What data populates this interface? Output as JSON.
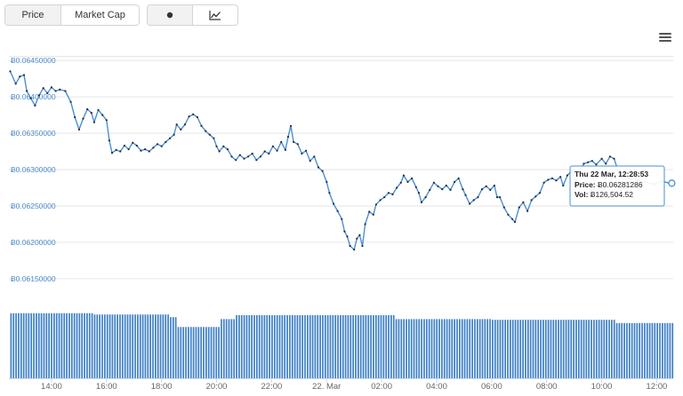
{
  "toolbar": {
    "price_label": "Price",
    "market_cap_label": "Market Cap",
    "dot_icon": "dot-icon",
    "line_chart_icon": "line-chart-icon",
    "menu_icon": "hamburger-menu-icon"
  },
  "colors": {
    "line": "#4a8fd6",
    "bar": "#3c7fc6",
    "grid": "#e6e6e6",
    "ytick": "#4d8ac9"
  },
  "tooltip": {
    "title": "Thu 22 Mar, 12:28:53",
    "price_label": "Price:",
    "price_value": "Ƀ0.06281286",
    "vol_label": "Vol:",
    "vol_value": "Ƀ126,504.52"
  },
  "chart_data": {
    "type": "line",
    "y_ticks": [
      "Ƀ0.06450000",
      "Ƀ0.06400000",
      "Ƀ0.06350000",
      "Ƀ0.06300000",
      "Ƀ0.06250000",
      "Ƀ0.06200000",
      "Ƀ0.06150000"
    ],
    "y_tick_values": [
      0.0645,
      0.064,
      0.0635,
      0.063,
      0.0625,
      0.062,
      0.0615
    ],
    "ylim": [
      0.06145,
      0.06455
    ],
    "x_ticks": [
      "14:00",
      "16:00",
      "18:00",
      "20:00",
      "22:00",
      "22. Mar",
      "02:00",
      "04:00",
      "06:00",
      "08:00",
      "10:00",
      "12:00"
    ],
    "x_tick_hours": [
      14,
      16,
      18,
      20,
      22,
      24,
      26,
      28,
      30,
      32,
      34,
      36
    ],
    "xlim_hours": [
      12.45,
      36.6
    ],
    "price_series": [
      [
        12.5,
        0.06435
      ],
      [
        12.7,
        0.06418
      ],
      [
        12.85,
        0.06428
      ],
      [
        13.0,
        0.0643
      ],
      [
        13.1,
        0.06408
      ],
      [
        13.25,
        0.06398
      ],
      [
        13.4,
        0.06388
      ],
      [
        13.55,
        0.06402
      ],
      [
        13.7,
        0.06412
      ],
      [
        13.85,
        0.06405
      ],
      [
        14.0,
        0.06413
      ],
      [
        14.15,
        0.06408
      ],
      [
        14.3,
        0.0641
      ],
      [
        14.5,
        0.06408
      ],
      [
        14.7,
        0.06393
      ],
      [
        14.85,
        0.06372
      ],
      [
        15.0,
        0.06355
      ],
      [
        15.15,
        0.0637
      ],
      [
        15.3,
        0.06383
      ],
      [
        15.45,
        0.06378
      ],
      [
        15.55,
        0.06365
      ],
      [
        15.7,
        0.06382
      ],
      [
        15.85,
        0.06375
      ],
      [
        16.0,
        0.06368
      ],
      [
        16.1,
        0.0634
      ],
      [
        16.2,
        0.06323
      ],
      [
        16.35,
        0.06327
      ],
      [
        16.5,
        0.06325
      ],
      [
        16.65,
        0.06333
      ],
      [
        16.8,
        0.06328
      ],
      [
        16.95,
        0.06337
      ],
      [
        17.1,
        0.06333
      ],
      [
        17.25,
        0.06326
      ],
      [
        17.4,
        0.06328
      ],
      [
        17.55,
        0.06325
      ],
      [
        17.7,
        0.0633
      ],
      [
        17.85,
        0.06335
      ],
      [
        18.0,
        0.06332
      ],
      [
        18.15,
        0.06338
      ],
      [
        18.3,
        0.06343
      ],
      [
        18.45,
        0.06348
      ],
      [
        18.55,
        0.06362
      ],
      [
        18.7,
        0.06355
      ],
      [
        18.85,
        0.06362
      ],
      [
        19.0,
        0.06373
      ],
      [
        19.15,
        0.06376
      ],
      [
        19.3,
        0.06372
      ],
      [
        19.45,
        0.0636
      ],
      [
        19.6,
        0.06353
      ],
      [
        19.75,
        0.06348
      ],
      [
        19.9,
        0.06343
      ],
      [
        20.0,
        0.06332
      ],
      [
        20.1,
        0.06325
      ],
      [
        20.25,
        0.06332
      ],
      [
        20.4,
        0.06328
      ],
      [
        20.55,
        0.06318
      ],
      [
        20.7,
        0.06313
      ],
      [
        20.85,
        0.0632
      ],
      [
        21.0,
        0.06315
      ],
      [
        21.15,
        0.06318
      ],
      [
        21.3,
        0.06322
      ],
      [
        21.45,
        0.06313
      ],
      [
        21.6,
        0.06318
      ],
      [
        21.75,
        0.06325
      ],
      [
        21.9,
        0.06322
      ],
      [
        22.05,
        0.06332
      ],
      [
        22.2,
        0.06326
      ],
      [
        22.35,
        0.06338
      ],
      [
        22.5,
        0.06327
      ],
      [
        22.6,
        0.06345
      ],
      [
        22.7,
        0.0636
      ],
      [
        22.8,
        0.06338
      ],
      [
        22.95,
        0.06335
      ],
      [
        23.1,
        0.06322
      ],
      [
        23.25,
        0.06326
      ],
      [
        23.4,
        0.06312
      ],
      [
        23.55,
        0.06318
      ],
      [
        23.7,
        0.06303
      ],
      [
        23.85,
        0.06298
      ],
      [
        24.0,
        0.06283
      ],
      [
        24.1,
        0.06268
      ],
      [
        24.25,
        0.06253
      ],
      [
        24.4,
        0.06243
      ],
      [
        24.55,
        0.06232
      ],
      [
        24.65,
        0.06215
      ],
      [
        24.75,
        0.06208
      ],
      [
        24.85,
        0.06195
      ],
      [
        25.0,
        0.0619
      ],
      [
        25.1,
        0.06205
      ],
      [
        25.2,
        0.0621
      ],
      [
        25.3,
        0.06195
      ],
      [
        25.4,
        0.06225
      ],
      [
        25.55,
        0.06242
      ],
      [
        25.7,
        0.06238
      ],
      [
        25.8,
        0.06252
      ],
      [
        25.95,
        0.06258
      ],
      [
        26.1,
        0.06262
      ],
      [
        26.25,
        0.06268
      ],
      [
        26.4,
        0.06266
      ],
      [
        26.55,
        0.06275
      ],
      [
        26.7,
        0.06282
      ],
      [
        26.8,
        0.06292
      ],
      [
        26.95,
        0.06283
      ],
      [
        27.1,
        0.06288
      ],
      [
        27.25,
        0.06276
      ],
      [
        27.35,
        0.06268
      ],
      [
        27.45,
        0.06255
      ],
      [
        27.6,
        0.06262
      ],
      [
        27.75,
        0.06272
      ],
      [
        27.9,
        0.06282
      ],
      [
        28.05,
        0.06277
      ],
      [
        28.2,
        0.06273
      ],
      [
        28.35,
        0.06278
      ],
      [
        28.5,
        0.06272
      ],
      [
        28.65,
        0.06283
      ],
      [
        28.8,
        0.06288
      ],
      [
        28.95,
        0.06273
      ],
      [
        29.05,
        0.06265
      ],
      [
        29.2,
        0.06253
      ],
      [
        29.35,
        0.06258
      ],
      [
        29.5,
        0.06262
      ],
      [
        29.65,
        0.06273
      ],
      [
        29.8,
        0.06277
      ],
      [
        29.95,
        0.06272
      ],
      [
        30.1,
        0.06278
      ],
      [
        30.2,
        0.06262
      ],
      [
        30.3,
        0.06262
      ],
      [
        30.45,
        0.06248
      ],
      [
        30.6,
        0.06238
      ],
      [
        30.75,
        0.06232
      ],
      [
        30.85,
        0.06228
      ],
      [
        31.0,
        0.06248
      ],
      [
        31.15,
        0.06255
      ],
      [
        31.3,
        0.06243
      ],
      [
        31.45,
        0.06258
      ],
      [
        31.6,
        0.06263
      ],
      [
        31.75,
        0.06268
      ],
      [
        31.9,
        0.06282
      ],
      [
        32.05,
        0.06286
      ],
      [
        32.2,
        0.06288
      ],
      [
        32.35,
        0.06285
      ],
      [
        32.5,
        0.0629
      ],
      [
        32.6,
        0.06278
      ],
      [
        32.75,
        0.06292
      ],
      [
        32.9,
        0.06298
      ],
      [
        33.05,
        0.06283
      ],
      [
        33.2,
        0.06298
      ],
      [
        33.35,
        0.06308
      ],
      [
        33.5,
        0.0631
      ],
      [
        33.65,
        0.06312
      ],
      [
        33.8,
        0.06307
      ],
      [
        34.0,
        0.06315
      ],
      [
        34.15,
        0.06308
      ],
      [
        34.3,
        0.06318
      ],
      [
        34.45,
        0.06315
      ],
      [
        34.6,
        0.06298
      ],
      [
        34.8,
        0.06292
      ],
      [
        35.0,
        0.06288
      ],
      [
        35.3,
        0.06285
      ],
      [
        35.6,
        0.06283
      ],
      [
        35.9,
        0.0628
      ],
      [
        36.2,
        0.06284
      ],
      [
        36.45,
        0.06281286
      ]
    ],
    "volume_series": {
      "segments": [
        {
          "from_hour": 12.5,
          "to_hour": 15.5,
          "relative_level": 0.99
        },
        {
          "from_hour": 15.5,
          "to_hour": 18.3,
          "relative_level": 0.97
        },
        {
          "from_hour": 18.3,
          "to_hour": 18.5,
          "relative_level": 0.93
        },
        {
          "from_hour": 18.5,
          "to_hour": 20.1,
          "relative_level": 0.78
        },
        {
          "from_hour": 20.1,
          "to_hour": 20.7,
          "relative_level": 0.9
        },
        {
          "from_hour": 20.7,
          "to_hour": 26.5,
          "relative_level": 0.96
        },
        {
          "from_hour": 26.5,
          "to_hour": 30.0,
          "relative_level": 0.9
        },
        {
          "from_hour": 30.0,
          "to_hour": 34.5,
          "relative_level": 0.89
        },
        {
          "from_hour": 34.5,
          "to_hour": 36.55,
          "relative_level": 0.84
        }
      ]
    },
    "grid": true,
    "legend": "none"
  }
}
